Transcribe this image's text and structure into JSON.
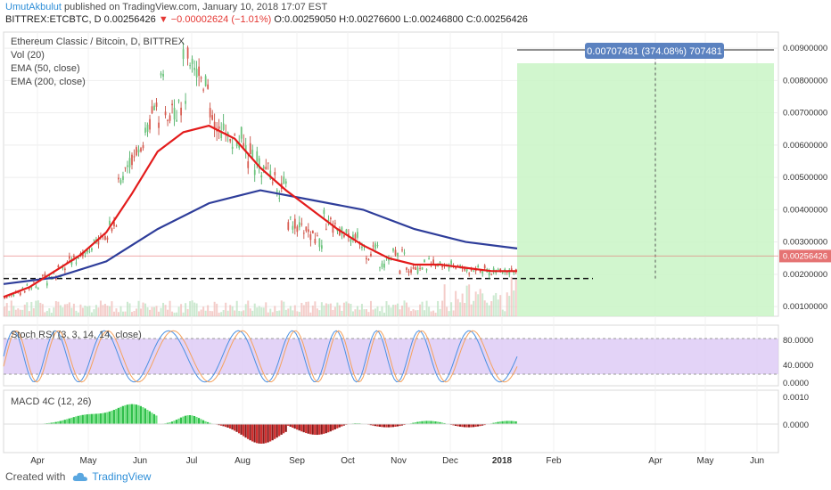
{
  "header": {
    "user": "UmutAkbulut",
    "published": "published on TradingView.com, January 10, 2018 17:07 EST",
    "symbol": "BITTREX:ETCBTC, D",
    "last": "0.00256426",
    "change": "▼ −0.00002624 (−1.01%)",
    "o": "O:0.00259050",
    "h": "H:0.00276600",
    "l": "L:0.00246800",
    "c": "C:0.00256426"
  },
  "footer": {
    "created": "Created with",
    "brand": "TradingView"
  },
  "chart_data": {
    "type": "line",
    "title": "Ethereum Classic / Bitcoin, D, BITTREX",
    "legend": [
      "Vol (20)",
      "EMA (50, close)",
      "EMA (200, close)"
    ],
    "x_ticks": [
      "Apr",
      "May",
      "Jun",
      "Jul",
      "Aug",
      "Sep",
      "Oct",
      "Nov",
      "Dec",
      "2018",
      "Feb",
      "Apr",
      "May",
      "Jun"
    ],
    "y_ticks": [
      "0.00900000",
      "0.00800000",
      "0.00700000",
      "0.00600000",
      "0.00500000",
      "0.00400000",
      "0.00300000",
      "0.00200000",
      "0.00100000"
    ],
    "ylim": [
      0.0007,
      0.0095
    ],
    "last_price_label": "0.00256426",
    "last_price": 0.00256426,
    "support_level": 0.00187,
    "target_level": 0.00895,
    "target_label": "0.00707481 (374.08%) 707481",
    "series": [
      {
        "name": "EMA (50, close)",
        "color": "#e31b1b",
        "points": [
          [
            0,
            0.0013
          ],
          [
            0.05,
            0.0016
          ],
          [
            0.1,
            0.0021
          ],
          [
            0.15,
            0.0026
          ],
          [
            0.2,
            0.0033
          ],
          [
            0.25,
            0.0045
          ],
          [
            0.3,
            0.0058
          ],
          [
            0.35,
            0.0064
          ],
          [
            0.4,
            0.0066
          ],
          [
            0.45,
            0.0062
          ],
          [
            0.5,
            0.0053
          ],
          [
            0.55,
            0.0046
          ],
          [
            0.6,
            0.004
          ],
          [
            0.65,
            0.0034
          ],
          [
            0.7,
            0.0029
          ],
          [
            0.75,
            0.0025
          ],
          [
            0.8,
            0.0023
          ],
          [
            0.85,
            0.0023
          ],
          [
            0.9,
            0.0022
          ],
          [
            0.95,
            0.0021
          ],
          [
            1,
            0.0021
          ]
        ]
      },
      {
        "name": "EMA (200, close)",
        "color": "#2e3d9a",
        "points": [
          [
            0,
            0.0017
          ],
          [
            0.1,
            0.0019
          ],
          [
            0.2,
            0.0024
          ],
          [
            0.3,
            0.0034
          ],
          [
            0.4,
            0.0042
          ],
          [
            0.5,
            0.0046
          ],
          [
            0.6,
            0.0043
          ],
          [
            0.7,
            0.004
          ],
          [
            0.8,
            0.0034
          ],
          [
            0.9,
            0.003
          ],
          [
            1,
            0.0028
          ]
        ]
      }
    ],
    "stoch_rsi": {
      "title": "Stoch RSI (3, 3, 14, 14, close)",
      "y_ticks": [
        "80.0000",
        "40.0000",
        "0.0000"
      ],
      "ylim": [
        0,
        100
      ],
      "band": [
        20,
        80
      ]
    },
    "macd": {
      "title": "MACD 4C (12, 26)",
      "y_ticks": [
        "0.0010",
        "0.0000"
      ]
    }
  }
}
